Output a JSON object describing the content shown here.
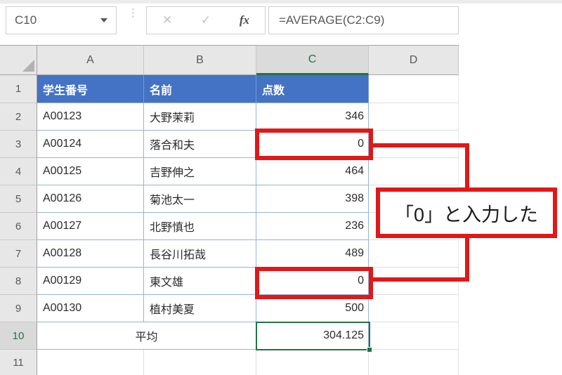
{
  "toolbar": {
    "name_box_value": "C10",
    "cancel_label": "✕",
    "enter_label": "✓",
    "fx_label": "fx",
    "formula": "=AVERAGE(C2:C9)"
  },
  "sheet": {
    "column_headers": [
      "A",
      "B",
      "C",
      "D"
    ],
    "row_headers": [
      "1",
      "2",
      "3",
      "4",
      "5",
      "6",
      "7",
      "8",
      "9",
      "10",
      "11"
    ],
    "selected_cell": "C10",
    "selected_column": "C",
    "selected_row": "10",
    "table": {
      "headers": [
        "学生番号",
        "名前",
        "点数"
      ],
      "rows": [
        [
          "A00123",
          "大野茉莉",
          "346"
        ],
        [
          "A00124",
          "落合和夫",
          "0"
        ],
        [
          "A00125",
          "吉野伸之",
          "464"
        ],
        [
          "A00126",
          "菊池太一",
          "398"
        ],
        [
          "A00127",
          "北野慎也",
          "236"
        ],
        [
          "A00128",
          "長谷川拓哉",
          "489"
        ],
        [
          "A00129",
          "東文雄",
          "0"
        ],
        [
          "A00130",
          "植村美夏",
          "500"
        ]
      ],
      "footer_label": "平均",
      "footer_value": "304.125"
    }
  },
  "annotation": {
    "label": "「0」と入力した"
  },
  "colors": {
    "excel_green": "#217346",
    "header_blue": "#4472C4",
    "table_border_blue": "#95B3D7",
    "annotation_red": "#E21717"
  }
}
